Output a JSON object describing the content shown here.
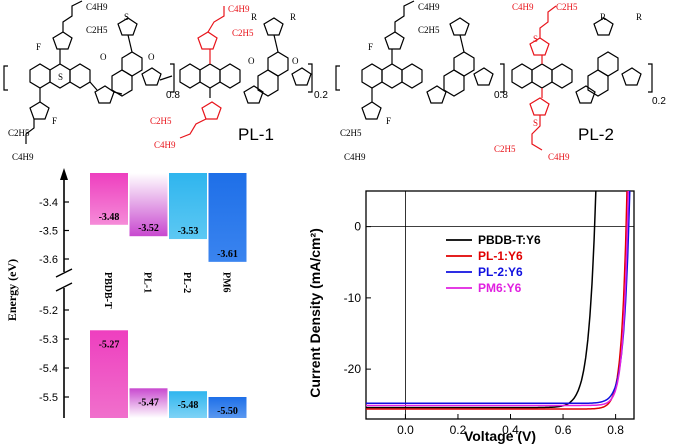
{
  "structures": {
    "left_label": "PL-1",
    "right_label": "PL-2",
    "fraction_a": "0.8",
    "fraction_b": "0.2",
    "substituents": {
      "c4h9": "C4H9",
      "c2h5": "C2H5",
      "f": "F",
      "s": "S",
      "o": "O",
      "r": "R"
    },
    "colors": {
      "backbone": "#000000",
      "modification": "#e8141b"
    }
  },
  "chart_data": [
    {
      "type": "energy-level diagram",
      "ylabel": "Energy (eV)",
      "yticks_upper": [
        "-3.4",
        "-3.5",
        "-3.6"
      ],
      "yticks_lower": [
        "-5.2",
        "-5.3",
        "-5.4",
        "-5.5"
      ],
      "axis_break": true,
      "materials": [
        {
          "name": "PBDB-T",
          "lumo": -3.48,
          "homo": -5.27,
          "lumo_label": "-3.48",
          "homo_label": "-5.27",
          "color": "#ee3fbf"
        },
        {
          "name": "PL-1",
          "lumo": -3.52,
          "homo": -5.47,
          "lumo_label": "-3.52",
          "homo_label": "-5.47",
          "color": "#c848cf"
        },
        {
          "name": "PL-2",
          "lumo": -3.53,
          "homo": -5.48,
          "lumo_label": "-3.53",
          "homo_label": "-5.48",
          "color": "#2fb5ee"
        },
        {
          "name": "PM6",
          "lumo": -3.61,
          "homo": -5.5,
          "lumo_label": "-3.61",
          "homo_label": "-5.50",
          "color": "#1e6fe8"
        }
      ]
    },
    {
      "type": "line",
      "xlabel": "Voltage (V)",
      "ylabel": "Current Density (mA/cm²)",
      "xlim": [
        -0.15,
        0.87
      ],
      "ylim": [
        -27,
        5
      ],
      "xticks": [
        "0.0",
        "0.2",
        "0.4",
        "0.6",
        "0.8"
      ],
      "yticks": [
        "0",
        "-10",
        "-20"
      ],
      "legend_position": "middle-right",
      "series": [
        {
          "name": "PBDB-T:Y6",
          "color": "#000000",
          "jsc": -25.4,
          "voc": 0.72,
          "ff": 0.62
        },
        {
          "name": "PL-1:Y6",
          "color": "#e00000",
          "jsc": -25.6,
          "voc": 0.84,
          "ff": 0.71
        },
        {
          "name": "PL-2:Y6",
          "color": "#1010e0",
          "jsc": -24.8,
          "voc": 0.85,
          "ff": 0.68
        },
        {
          "name": "PM6:Y6",
          "color": "#e020e0",
          "jsc": -25.1,
          "voc": 0.845,
          "ff": 0.72
        }
      ]
    }
  ]
}
